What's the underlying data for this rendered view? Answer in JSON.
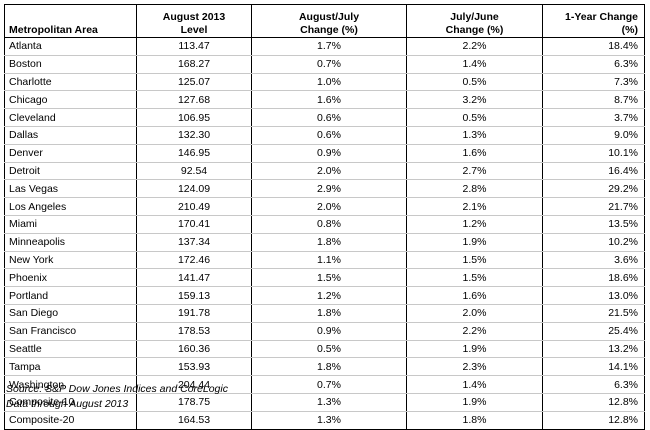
{
  "table": {
    "headers": [
      [
        "",
        "Metropolitan Area"
      ],
      [
        "August 2013",
        "Level"
      ],
      [
        "August/July",
        "Change (%)"
      ],
      [
        "July/June",
        "Change (%)"
      ],
      [
        "",
        "1-Year Change (%)"
      ]
    ],
    "rows": [
      [
        "Atlanta",
        "113.47",
        "1.7%",
        "2.2%",
        "18.4%"
      ],
      [
        "Boston",
        "168.27",
        "0.7%",
        "1.4%",
        "6.3%"
      ],
      [
        "Charlotte",
        "125.07",
        "1.0%",
        "0.5%",
        "7.3%"
      ],
      [
        "Chicago",
        "127.68",
        "1.6%",
        "3.2%",
        "8.7%"
      ],
      [
        "Cleveland",
        "106.95",
        "0.6%",
        "0.5%",
        "3.7%"
      ],
      [
        "Dallas",
        "132.30",
        "0.6%",
        "1.3%",
        "9.0%"
      ],
      [
        "Denver",
        "146.95",
        "0.9%",
        "1.6%",
        "10.1%"
      ],
      [
        "Detroit",
        "92.54",
        "2.0%",
        "2.7%",
        "16.4%"
      ],
      [
        "Las Vegas",
        "124.09",
        "2.9%",
        "2.8%",
        "29.2%"
      ],
      [
        "Los Angeles",
        "210.49",
        "2.0%",
        "2.1%",
        "21.7%"
      ],
      [
        "Miami",
        "170.41",
        "0.8%",
        "1.2%",
        "13.5%"
      ],
      [
        "Minneapolis",
        "137.34",
        "1.8%",
        "1.9%",
        "10.2%"
      ],
      [
        "New York",
        "172.46",
        "1.1%",
        "1.5%",
        "3.6%"
      ],
      [
        "Phoenix",
        "141.47",
        "1.5%",
        "1.5%",
        "18.6%"
      ],
      [
        "Portland",
        "159.13",
        "1.2%",
        "1.6%",
        "13.0%"
      ],
      [
        "San Diego",
        "191.78",
        "1.8%",
        "2.0%",
        "21.5%"
      ],
      [
        "San Francisco",
        "178.53",
        "0.9%",
        "2.2%",
        "25.4%"
      ],
      [
        "Seattle",
        "160.36",
        "0.5%",
        "1.9%",
        "13.2%"
      ],
      [
        "Tampa",
        "153.93",
        "1.8%",
        "2.3%",
        "14.1%"
      ],
      [
        "Washington",
        "204.44",
        "0.7%",
        "1.4%",
        "6.3%"
      ],
      [
        "Composite-10",
        "178.75",
        "1.3%",
        "1.9%",
        "12.8%"
      ],
      [
        "Composite-20",
        "164.53",
        "1.3%",
        "1.8%",
        "12.8%"
      ]
    ]
  },
  "footer": {
    "source": "Source: S&P Dow Jones Indices and CoreLogic",
    "data_through": "Data through August 2013"
  }
}
